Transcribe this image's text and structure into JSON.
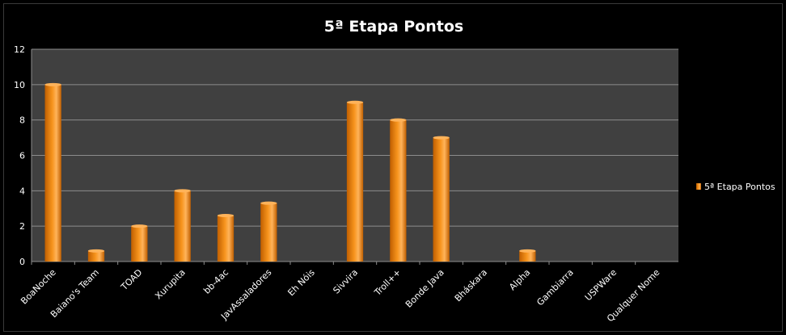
{
  "chart_data": {
    "type": "bar",
    "title": "5ª Etapa Pontos",
    "categories": [
      "BoaNoche",
      "Baiano's Team",
      "TOAD",
      "Xurupita",
      "bb-4ac",
      "JavAssaladores",
      "Eh Nóis",
      "Sivvira",
      "Troll++",
      "Bonde Java",
      "Bháskara",
      "Alpha",
      "Gambiarra",
      "USPWare",
      "Qualquer Nome"
    ],
    "series": [
      {
        "name": "5ª Etapa Pontos",
        "values": [
          10,
          0.6,
          2,
          4,
          2.6,
          3.3,
          0,
          9,
          8,
          7,
          0,
          0.6,
          0,
          0,
          0
        ]
      }
    ],
    "ylim": [
      0,
      12
    ],
    "yticks": [
      0,
      2,
      4,
      6,
      8,
      10,
      12
    ],
    "grid": true,
    "legend": "right",
    "colors": {
      "background": "#000000",
      "plot_area": "#404040",
      "gridline": "#8c8c8c",
      "bar_light": "#ffb35a",
      "bar_mid": "#f7941d",
      "bar_dark": "#c05f00",
      "text": "#ffffff"
    }
  }
}
